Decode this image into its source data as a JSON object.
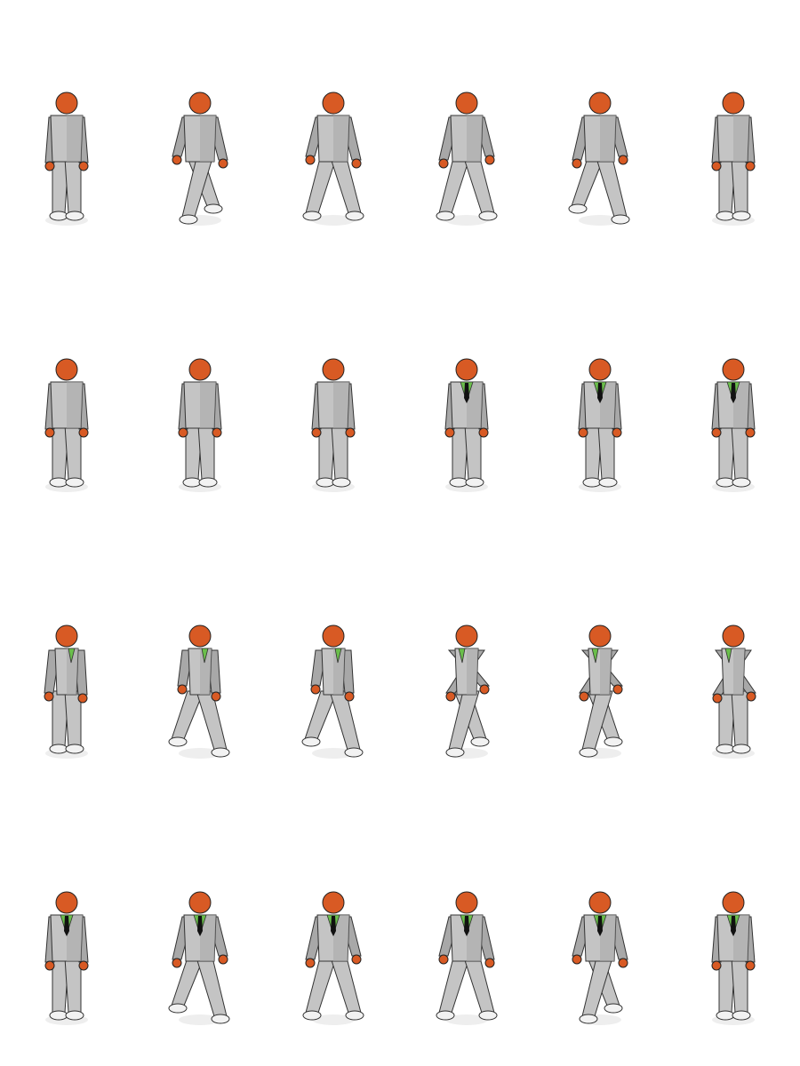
{
  "sprite_sheet": {
    "columns": 6,
    "rows": 4,
    "colors": {
      "skin": "#d85a24",
      "suit_light": "#c4c4c4",
      "suit_mid": "#a8a8a8",
      "suit_dark": "#8e8e8e",
      "outline": "#333333",
      "shadow": "#eeeeee",
      "tie": "#111111",
      "shirt": "#6abf4b"
    },
    "rows_data": [
      {
        "name": "walk-back",
        "frames": [
          {
            "pose": "stand",
            "facing": "back",
            "dir": -1
          },
          {
            "pose": "stride",
            "facing": "back",
            "dir": -1
          },
          {
            "pose": "step",
            "facing": "back",
            "dir": -1
          },
          {
            "pose": "step",
            "facing": "back",
            "dir": 1
          },
          {
            "pose": "stride",
            "facing": "back",
            "dir": 1
          },
          {
            "pose": "stand",
            "facing": "back",
            "dir": 1
          }
        ]
      },
      {
        "name": "turn-around",
        "frames": [
          {
            "pose": "stand",
            "facing": "back",
            "dir": 1
          },
          {
            "pose": "stand",
            "facing": "back",
            "dir": -1
          },
          {
            "pose": "stand",
            "facing": "back",
            "dir": 1
          },
          {
            "pose": "stand",
            "facing": "front",
            "dir": -1
          },
          {
            "pose": "stand",
            "facing": "front",
            "dir": 1
          },
          {
            "pose": "stand",
            "facing": "front",
            "dir": 1
          }
        ]
      },
      {
        "name": "walk-side",
        "frames": [
          {
            "pose": "stand",
            "facing": "side",
            "dir": 1
          },
          {
            "pose": "stride",
            "facing": "side",
            "dir": 1
          },
          {
            "pose": "stride",
            "facing": "side",
            "dir": 1
          },
          {
            "pose": "stride",
            "facing": "side",
            "dir": -1
          },
          {
            "pose": "stride",
            "facing": "side",
            "dir": -1
          },
          {
            "pose": "stand",
            "facing": "side",
            "dir": -1
          }
        ]
      },
      {
        "name": "walk-front",
        "frames": [
          {
            "pose": "stand",
            "facing": "front",
            "dir": 1
          },
          {
            "pose": "stride",
            "facing": "front",
            "dir": 1
          },
          {
            "pose": "step",
            "facing": "front",
            "dir": 1
          },
          {
            "pose": "step",
            "facing": "front",
            "dir": -1
          },
          {
            "pose": "stride",
            "facing": "front",
            "dir": -1
          },
          {
            "pose": "stand",
            "facing": "front",
            "dir": -1
          }
        ]
      }
    ]
  }
}
